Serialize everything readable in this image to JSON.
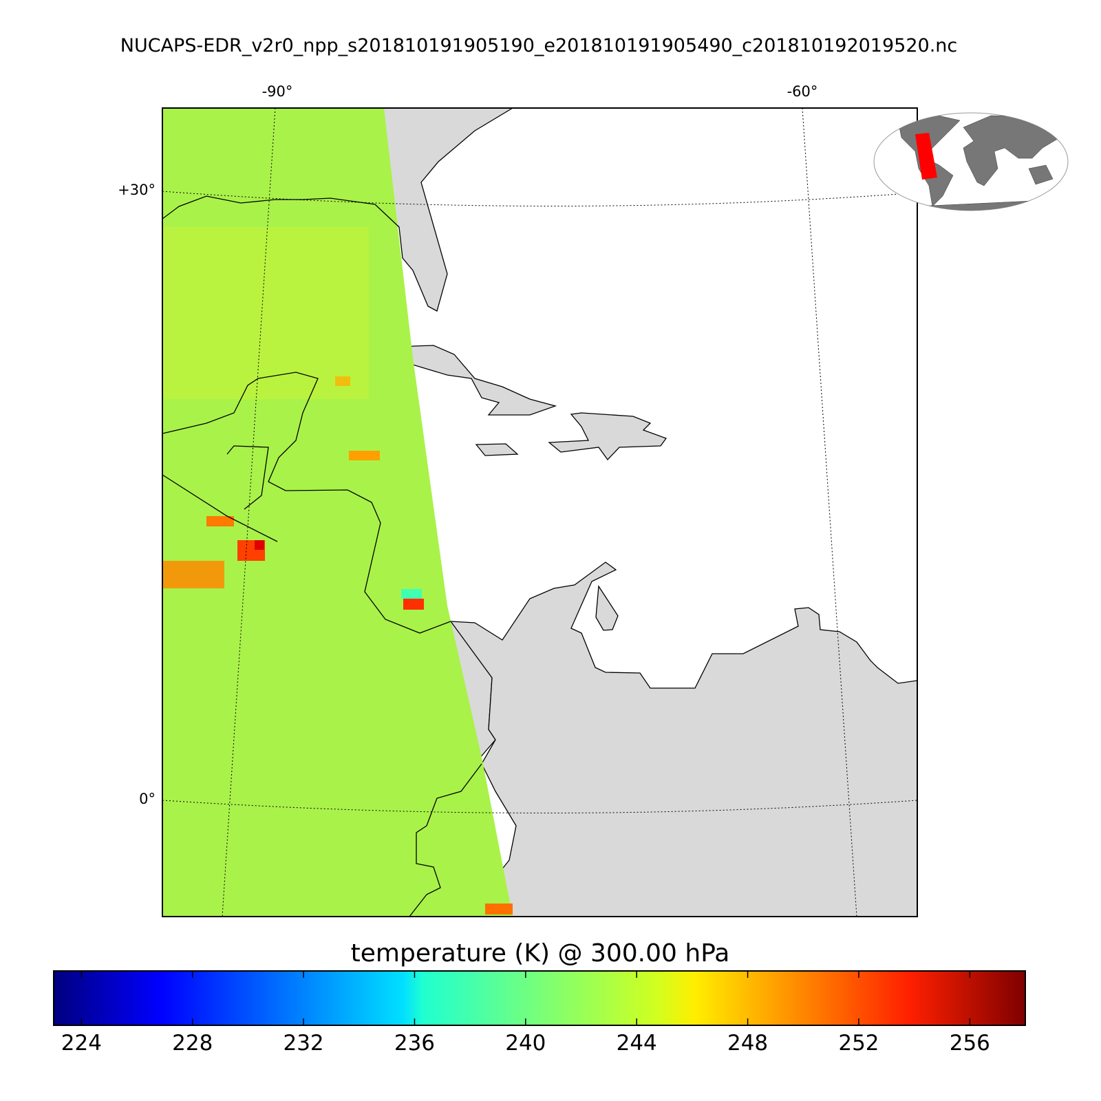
{
  "map": {
    "title": "NUCAPS-EDR_v2r0_npp_s201810191905190_e201810191905490_c201810192019520.nc",
    "lon_labels": [
      "-90°",
      "-60°"
    ],
    "lat_labels": [
      "+30°",
      "0°"
    ]
  },
  "colorbar": {
    "label": "temperature (K) @ 300.00 hPa",
    "lim": [
      223,
      258
    ],
    "ticks": [
      224,
      228,
      232,
      236,
      240,
      244,
      248,
      252,
      256
    ]
  }
}
